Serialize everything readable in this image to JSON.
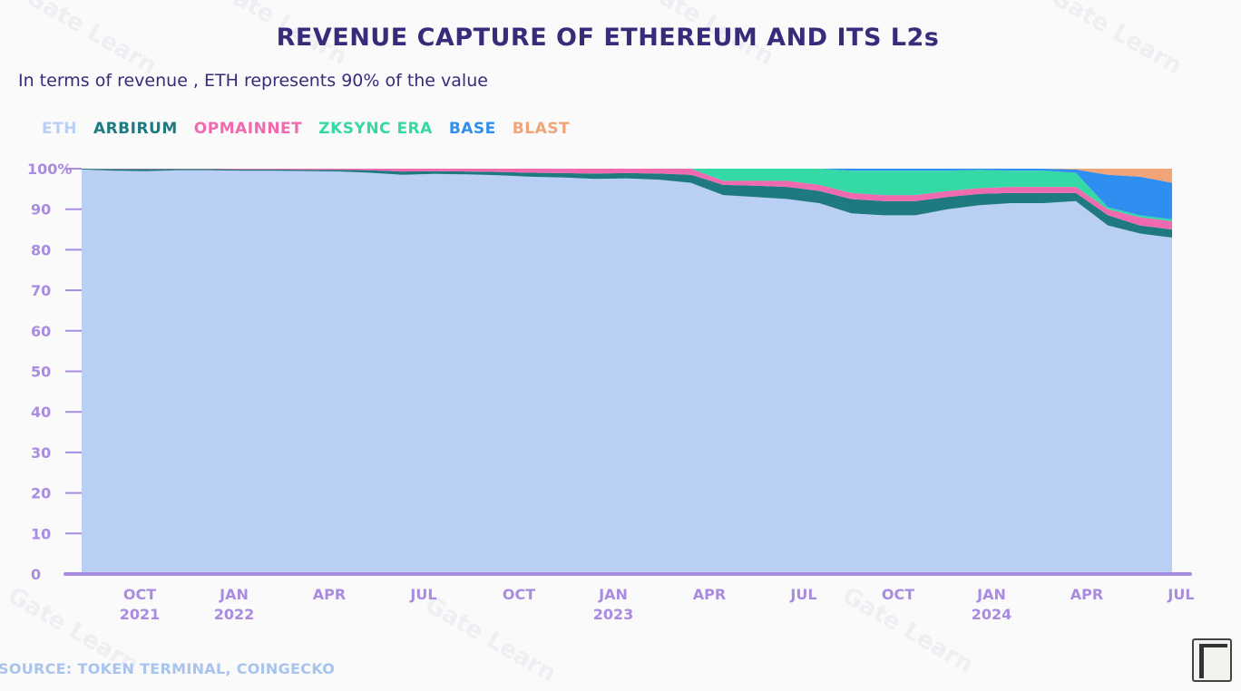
{
  "header": {
    "title": "REVENUE CAPTURE OF ETHEREUM AND ITS L2s",
    "subtitle": "In terms of revenue , ETH represents 90% of the value"
  },
  "legend": [
    {
      "label": "ETH",
      "color": "#b9cff3"
    },
    {
      "label": "ARBIRUM",
      "color": "#1e7a80"
    },
    {
      "label": "OPMAINNET",
      "color": "#f06ab0"
    },
    {
      "label": "ZKSYNC ERA",
      "color": "#34d9a6"
    },
    {
      "label": "BASE",
      "color": "#2f8ff0"
    },
    {
      "label": "BLAST",
      "color": "#f0a478"
    }
  ],
  "source": "SOURCE: TOKEN TERMINAL, COINGECKO",
  "watermark": "Gate Learn",
  "chart_data": {
    "type": "area",
    "stacked": true,
    "title": "REVENUE CAPTURE OF ETHEREUM AND ITS L2s",
    "ylabel": "",
    "xlabel": "",
    "ylim": [
      0,
      100
    ],
    "y_ticks": [
      "0",
      "10",
      "20",
      "30",
      "40",
      "50",
      "60",
      "70",
      "80",
      "90",
      "100%"
    ],
    "x_ticks": [
      {
        "month": "OCT",
        "year": "2021"
      },
      {
        "month": "JAN",
        "year": "2022"
      },
      {
        "month": "APR",
        "year": ""
      },
      {
        "month": "JUL",
        "year": ""
      },
      {
        "month": "OCT",
        "year": ""
      },
      {
        "month": "JAN",
        "year": "2023"
      },
      {
        "month": "APR",
        "year": ""
      },
      {
        "month": "JUL",
        "year": ""
      },
      {
        "month": "OCT",
        "year": ""
      },
      {
        "month": "JAN",
        "year": "2024"
      },
      {
        "month": "APR",
        "year": ""
      },
      {
        "month": "JUL",
        "year": ""
      }
    ],
    "x_start": "2021-08",
    "x_end": "2024-07",
    "categories": [
      "Aug 2021",
      "Sep 2021",
      "Oct 2021",
      "Nov 2021",
      "Dec 2021",
      "Jan 2022",
      "Feb 2022",
      "Mar 2022",
      "Apr 2022",
      "May 2022",
      "Jun 2022",
      "Jul 2022",
      "Aug 2022",
      "Sep 2022",
      "Oct 2022",
      "Nov 2022",
      "Dec 2022",
      "Jan 2023",
      "Feb 2023",
      "Mar 2023",
      "Apr 2023",
      "May 2023",
      "Jun 2023",
      "Jul 2023",
      "Aug 2023",
      "Sep 2023",
      "Oct 2023",
      "Nov 2023",
      "Dec 2023",
      "Jan 2024",
      "Feb 2024",
      "Mar 2024",
      "Apr 2024",
      "May 2024",
      "Jun 2024"
    ],
    "series": [
      {
        "name": "ETH",
        "color": "#b9cff3",
        "values": [
          99.8,
          99.5,
          99.4,
          99.6,
          99.6,
          99.5,
          99.5,
          99.4,
          99.3,
          99.0,
          98.5,
          98.7,
          98.6,
          98.4,
          98.0,
          97.8,
          97.5,
          97.6,
          97.3,
          96.5,
          93.5,
          93.0,
          92.5,
          91.5,
          89.0,
          88.5,
          88.5,
          90.0,
          91.0,
          91.5,
          91.5,
          92.0,
          86.0,
          84.0,
          83.0
        ]
      },
      {
        "name": "ARBIRUM",
        "values": [
          0.2,
          0.4,
          0.5,
          0.3,
          0.3,
          0.3,
          0.3,
          0.3,
          0.4,
          0.6,
          0.8,
          0.7,
          0.7,
          0.8,
          1.0,
          1.1,
          1.3,
          1.3,
          1.5,
          2.0,
          2.5,
          2.8,
          3.0,
          3.0,
          3.5,
          3.5,
          3.5,
          3.0,
          2.8,
          2.5,
          2.5,
          2.0,
          2.5,
          2.0,
          2.0
        ]
      },
      {
        "name": "OPMAINNET",
        "values": [
          0.0,
          0.1,
          0.1,
          0.1,
          0.1,
          0.2,
          0.2,
          0.3,
          0.3,
          0.4,
          0.7,
          0.6,
          0.7,
          0.8,
          1.0,
          1.1,
          1.2,
          1.1,
          1.2,
          1.5,
          1.0,
          1.2,
          1.5,
          1.5,
          1.5,
          1.5,
          1.5,
          1.5,
          1.4,
          1.5,
          1.5,
          1.5,
          1.5,
          2.0,
          2.0
        ]
      },
      {
        "name": "ZKSYNC ERA",
        "values": [
          0,
          0,
          0,
          0,
          0,
          0,
          0,
          0,
          0,
          0,
          0,
          0,
          0,
          0,
          0,
          0,
          0,
          0,
          0,
          0,
          3.0,
          3.0,
          3.0,
          4.0,
          5.5,
          6.0,
          6.0,
          5.0,
          4.5,
          4.0,
          4.0,
          3.5,
          0.5,
          0.5,
          0.5
        ]
      },
      {
        "name": "BASE",
        "values": [
          0,
          0,
          0,
          0,
          0,
          0,
          0,
          0,
          0,
          0,
          0,
          0,
          0,
          0,
          0,
          0,
          0,
          0,
          0,
          0,
          0,
          0,
          0,
          0,
          0.5,
          0.5,
          0.5,
          0.5,
          0.3,
          0.5,
          0.5,
          0.8,
          8.0,
          9.5,
          9.0
        ]
      },
      {
        "name": "BLAST",
        "values": [
          0,
          0,
          0,
          0,
          0,
          0,
          0,
          0,
          0,
          0,
          0,
          0,
          0,
          0,
          0,
          0,
          0,
          0,
          0,
          0,
          0,
          0,
          0,
          0,
          0,
          0,
          0,
          0,
          0,
          0,
          0,
          0.2,
          1.5,
          2.0,
          3.5
        ]
      }
    ]
  }
}
